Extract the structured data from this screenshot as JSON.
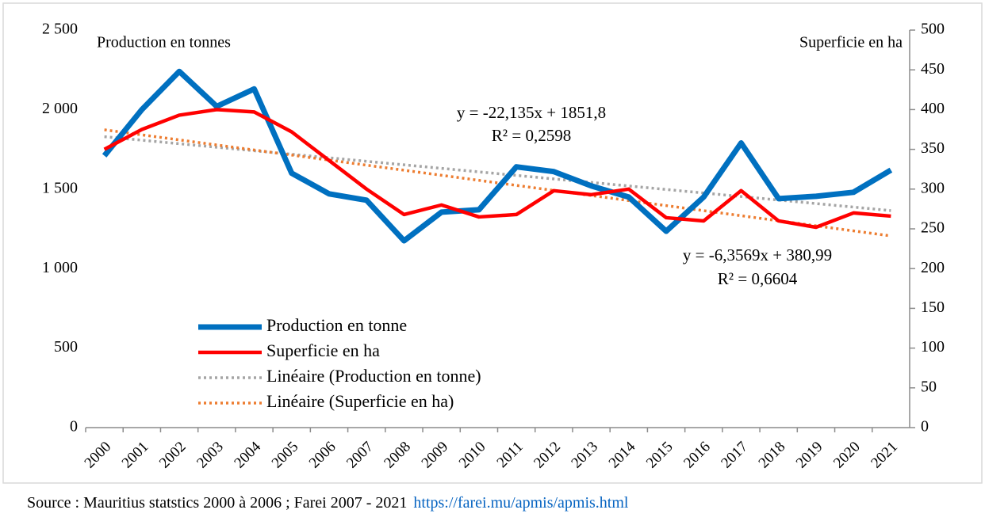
{
  "chart_data": {
    "type": "line",
    "y_axis_title": "Production en tonnes",
    "y2_axis_title": "Superficie en ha",
    "categories": [
      "2000",
      "2001",
      "2002",
      "2003",
      "2004",
      "2005",
      "2006",
      "2007",
      "2008",
      "2009",
      "2010",
      "2011",
      "2012",
      "2013",
      "2014",
      "2015",
      "2016",
      "2017",
      "2018",
      "2019",
      "2020",
      "2021"
    ],
    "series": [
      {
        "name": "Production en tonne",
        "color": "#0070c0",
        "axis": "y",
        "values": [
          1710,
          2000,
          2240,
          2020,
          2130,
          1600,
          1470,
          1430,
          1175,
          1355,
          1370,
          1640,
          1610,
          1520,
          1450,
          1235,
          1450,
          1790,
          1440,
          1455,
          1480,
          1620
        ]
      },
      {
        "name": "Superficie en ha",
        "color": "#ff0000",
        "axis": "y2",
        "values": [
          350,
          375,
          393,
          400,
          397,
          372,
          336,
          300,
          268,
          280,
          265,
          268,
          298,
          293,
          300,
          264,
          260,
          298,
          260,
          252,
          270,
          266
        ]
      }
    ],
    "trendlines": [
      {
        "name": "Linéaire (Production en tonne)",
        "color": "#a5a5a5",
        "axis": "y",
        "x": [
          "2000",
          "2021"
        ],
        "values": [
          1829.7,
          1364.8
        ]
      },
      {
        "name": "Linéaire (Superficie en ha)",
        "color": "#ed7d31",
        "axis": "y2",
        "x": [
          "2000",
          "2021"
        ],
        "values": [
          374.6,
          241.1
        ]
      }
    ],
    "annotations": [
      {
        "text": "y = -22,135x + 1851,8",
        "color": "#0070c0"
      },
      {
        "text": "R² = 0,2598",
        "color": "#0070c0"
      },
      {
        "text": "y = -6,3569x + 380,99",
        "color": "#ff0000"
      },
      {
        "text": "R² = 0,6604",
        "color": "#ff0000"
      }
    ],
    "ylim": [
      0,
      2500
    ],
    "yticks": [
      0,
      500,
      {
        "value": 1000,
        "label": "1 000"
      },
      {
        "value": 1500,
        "label": "1 500"
      },
      {
        "value": 2000,
        "label": "2 000"
      },
      {
        "value": 2500,
        "label": "2 500"
      }
    ],
    "y2lim": [
      0,
      500
    ],
    "y2ticks": [
      0,
      50,
      100,
      150,
      200,
      250,
      300,
      350,
      400,
      450,
      500
    ],
    "legend": "lower left",
    "source": "Source : Mauritius statstics 2000 à 2006 ; Farei 2007 - 2021",
    "source_link": "https://farei.mu/apmis/apmis.html"
  }
}
